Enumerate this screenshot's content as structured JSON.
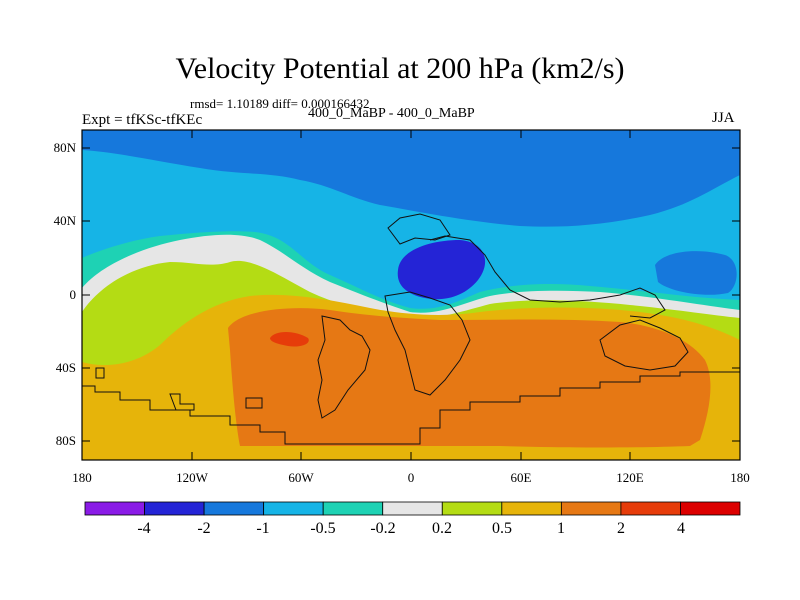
{
  "title": "Velocity Potential at 200 hPa (km2/s)",
  "stats_line": "rmsd= 1.10189 diff= 0.000166432",
  "experiment_label": "Expt = tfKSc-tfKEc",
  "difference_label": "400_0_MaBP - 400_0_MaBP",
  "season_label": "JJA",
  "map": {
    "y_ticks": [
      "80N",
      "40N",
      "0",
      "40S",
      "80S"
    ],
    "x_ticks": [
      "180",
      "120W",
      "60W",
      "0",
      "60E",
      "120E",
      "180"
    ]
  },
  "colorbar": {
    "labels": [
      "-4",
      "-2",
      "-1",
      "-0.5",
      "-0.2",
      "0.2",
      "0.5",
      "1",
      "2",
      "4"
    ],
    "colors": [
      "#8a1be6",
      "#2424d6",
      "#1678dc",
      "#16b4e6",
      "#1ed2b4",
      "#e6e6e6",
      "#b4dc14",
      "#e6b40a",
      "#e67814",
      "#e63c0a",
      "#dc0000"
    ]
  }
}
